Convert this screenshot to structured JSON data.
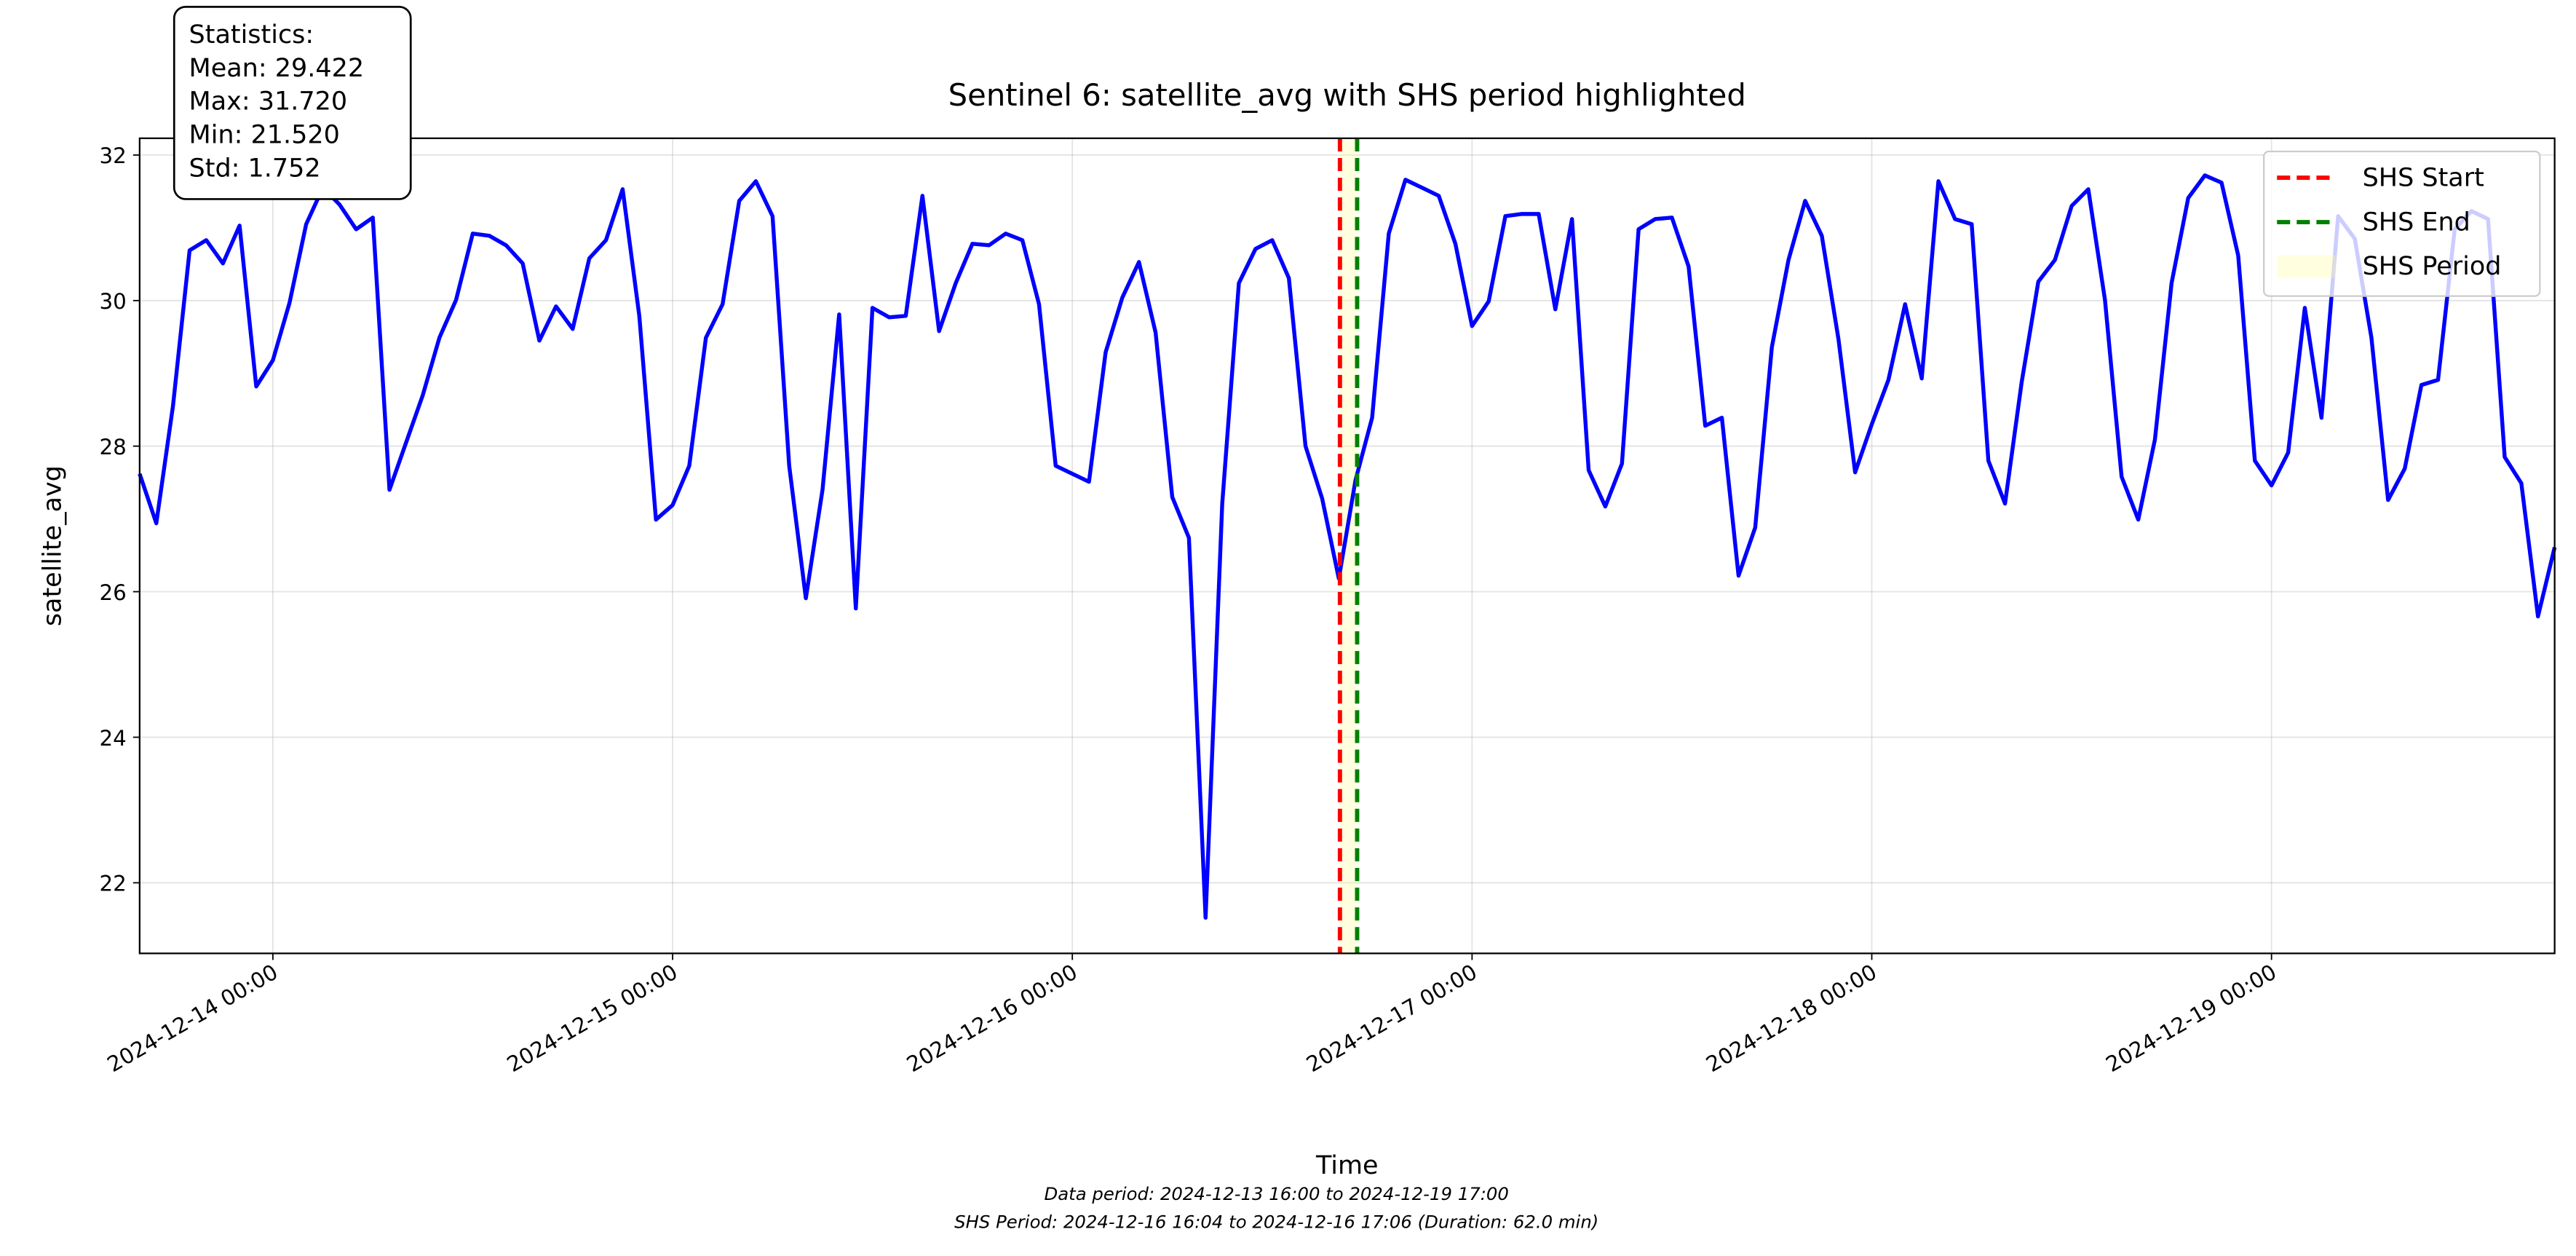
{
  "chart_data": {
    "type": "line",
    "title": "Sentinel 6: satellite_avg with SHS period highlighted",
    "xlabel": "Time",
    "ylabel": "satellite_avg",
    "x": [
      "2024-12-13 16:00",
      "2024-12-13 17:00",
      "2024-12-13 18:00",
      "2024-12-13 19:00",
      "2024-12-13 20:00",
      "2024-12-13 21:00",
      "2024-12-13 22:00",
      "2024-12-13 23:00",
      "2024-12-14 00:00",
      "2024-12-14 01:00",
      "2024-12-14 02:00",
      "2024-12-14 03:00",
      "2024-12-14 04:00",
      "2024-12-14 05:00",
      "2024-12-14 06:00",
      "2024-12-14 07:00",
      "2024-12-14 08:00",
      "2024-12-14 09:00",
      "2024-12-14 10:00",
      "2024-12-14 11:00",
      "2024-12-14 12:00",
      "2024-12-14 13:00",
      "2024-12-14 14:00",
      "2024-12-14 15:00",
      "2024-12-14 16:00",
      "2024-12-14 17:00",
      "2024-12-14 18:00",
      "2024-12-14 19:00",
      "2024-12-14 20:00",
      "2024-12-14 21:00",
      "2024-12-14 22:00",
      "2024-12-14 23:00",
      "2024-12-15 00:00",
      "2024-12-15 01:00",
      "2024-12-15 02:00",
      "2024-12-15 03:00",
      "2024-12-15 04:00",
      "2024-12-15 05:00",
      "2024-12-15 06:00",
      "2024-12-15 07:00",
      "2024-12-15 08:00",
      "2024-12-15 09:00",
      "2024-12-15 10:00",
      "2024-12-15 11:00",
      "2024-12-15 12:00",
      "2024-12-15 13:00",
      "2024-12-15 14:00",
      "2024-12-15 15:00",
      "2024-12-15 16:00",
      "2024-12-15 17:00",
      "2024-12-15 18:00",
      "2024-12-15 19:00",
      "2024-12-15 20:00",
      "2024-12-15 21:00",
      "2024-12-15 22:00",
      "2024-12-15 23:00",
      "2024-12-16 00:00",
      "2024-12-16 01:00",
      "2024-12-16 02:00",
      "2024-12-16 03:00",
      "2024-12-16 04:00",
      "2024-12-16 05:00",
      "2024-12-16 06:00",
      "2024-12-16 07:00",
      "2024-12-16 08:00",
      "2024-12-16 09:00",
      "2024-12-16 10:00",
      "2024-12-16 11:00",
      "2024-12-16 12:00",
      "2024-12-16 13:00",
      "2024-12-16 14:00",
      "2024-12-16 15:00",
      "2024-12-16 16:00",
      "2024-12-16 17:00",
      "2024-12-16 18:00",
      "2024-12-16 19:00",
      "2024-12-16 20:00",
      "2024-12-16 21:00",
      "2024-12-16 22:00",
      "2024-12-16 23:00",
      "2024-12-17 00:00",
      "2024-12-17 01:00",
      "2024-12-17 02:00",
      "2024-12-17 03:00",
      "2024-12-17 04:00",
      "2024-12-17 05:00",
      "2024-12-17 06:00",
      "2024-12-17 07:00",
      "2024-12-17 08:00",
      "2024-12-17 09:00",
      "2024-12-17 10:00",
      "2024-12-17 11:00",
      "2024-12-17 12:00",
      "2024-12-17 13:00",
      "2024-12-17 14:00",
      "2024-12-17 15:00",
      "2024-12-17 16:00",
      "2024-12-17 17:00",
      "2024-12-17 18:00",
      "2024-12-17 19:00",
      "2024-12-17 20:00",
      "2024-12-17 21:00",
      "2024-12-17 22:00",
      "2024-12-17 23:00",
      "2024-12-18 00:00",
      "2024-12-18 01:00",
      "2024-12-18 02:00",
      "2024-12-18 03:00",
      "2024-12-18 04:00",
      "2024-12-18 05:00",
      "2024-12-18 06:00",
      "2024-12-18 07:00",
      "2024-12-18 08:00",
      "2024-12-18 09:00",
      "2024-12-18 10:00",
      "2024-12-18 11:00",
      "2024-12-18 12:00",
      "2024-12-18 13:00",
      "2024-12-18 14:00",
      "2024-12-18 15:00",
      "2024-12-18 16:00",
      "2024-12-18 17:00",
      "2024-12-18 18:00",
      "2024-12-18 19:00",
      "2024-12-18 20:00",
      "2024-12-18 21:00",
      "2024-12-18 22:00",
      "2024-12-18 23:00",
      "2024-12-19 00:00",
      "2024-12-19 01:00",
      "2024-12-19 02:00",
      "2024-12-19 03:00",
      "2024-12-19 04:00",
      "2024-12-19 05:00",
      "2024-12-19 06:00",
      "2024-12-19 07:00",
      "2024-12-19 08:00",
      "2024-12-19 09:00",
      "2024-12-19 10:00",
      "2024-12-19 11:00",
      "2024-12-19 12:00",
      "2024-12-19 13:00",
      "2024-12-19 14:00",
      "2024-12-19 15:00",
      "2024-12-19 16:00",
      "2024-12-19 17:00"
    ],
    "series": [
      {
        "color": "#0000ff",
        "values": [
          27.62,
          26.94,
          28.55,
          30.69,
          30.83,
          30.51,
          31.03,
          28.82,
          29.18,
          29.97,
          31.05,
          31.55,
          31.32,
          30.98,
          31.14,
          27.4,
          28.05,
          28.7,
          29.49,
          30.01,
          30.92,
          30.89,
          30.76,
          30.51,
          29.45,
          29.92,
          29.61,
          30.58,
          30.83,
          31.53,
          29.79,
          26.99,
          27.19,
          27.73,
          29.49,
          29.95,
          31.37,
          31.64,
          31.16,
          27.73,
          25.91,
          27.4,
          29.81,
          25.77,
          29.9,
          29.77,
          29.79,
          31.44,
          29.58,
          30.24,
          30.78,
          30.76,
          30.92,
          30.83,
          29.95,
          27.73,
          27.62,
          27.51,
          29.29,
          30.04,
          30.53,
          29.56,
          27.3,
          26.74,
          21.52,
          27.21,
          30.24,
          30.71,
          30.83,
          30.31,
          28.0,
          27.28,
          26.18,
          27.53,
          28.39,
          30.92,
          31.66,
          31.55,
          31.44,
          30.78,
          29.65,
          29.99,
          31.16,
          31.19,
          31.19,
          29.88,
          31.12,
          27.67,
          27.17,
          27.76,
          30.98,
          31.12,
          31.14,
          30.47,
          28.28,
          28.39,
          26.22,
          26.88,
          29.36,
          30.56,
          31.37,
          30.89,
          29.47,
          27.64,
          28.3,
          28.91,
          29.95,
          28.93,
          31.64,
          31.12,
          31.05,
          27.8,
          27.21,
          28.88,
          30.26,
          30.56,
          31.3,
          31.53,
          30.01,
          27.58,
          26.99,
          28.09,
          30.24,
          31.41,
          31.72,
          31.62,
          30.62,
          27.8,
          27.46,
          27.91,
          29.9,
          28.39,
          31.16,
          30.85,
          29.49,
          27.26,
          27.69,
          28.84,
          28.91,
          30.98,
          31.23,
          31.12,
          27.85,
          27.49,
          25.66,
          26.61
        ]
      }
    ],
    "markers": [
      {
        "name": "SHS Start",
        "color": "#ff0000",
        "x": "2024-12-16 16:04"
      },
      {
        "name": "SHS End",
        "color": "#008000",
        "x": "2024-12-16 17:06"
      }
    ],
    "span": {
      "name": "SHS Period",
      "color": "#ffff99"
    },
    "xlim": [
      "2024-12-13 16:00",
      "2024-12-19 17:00"
    ],
    "xticks": [
      "2024-12-14 00:00",
      "2024-12-15 00:00",
      "2024-12-16 00:00",
      "2024-12-17 00:00",
      "2024-12-18 00:00",
      "2024-12-19 00:00"
    ],
    "ylim": [
      21.03,
      32.23
    ],
    "yticks": [
      22,
      24,
      26,
      28,
      30,
      32
    ],
    "grid": true,
    "legend": "upper right",
    "stats": [
      "Statistics:",
      "Mean: 29.422",
      "Max: 31.720",
      "Min: 21.520",
      "Std: 1.752"
    ],
    "footer": [
      "Data period: 2024-12-13 16:00 to 2024-12-19 17:00",
      "SHS Period: 2024-12-16 16:04 to 2024-12-16 17:06 (Duration: 62.0 min)"
    ]
  }
}
